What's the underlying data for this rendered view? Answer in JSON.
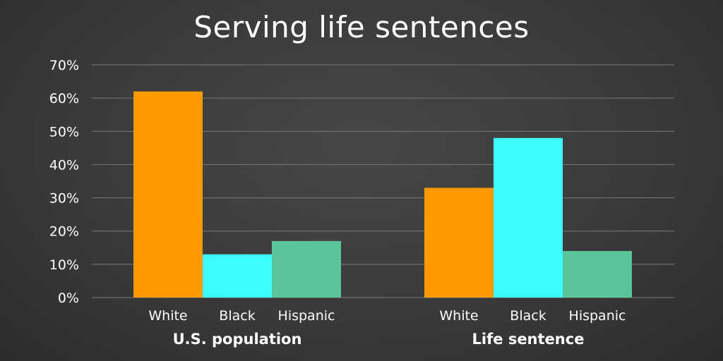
{
  "chart_data": {
    "type": "bar",
    "title": "Serving life sentences",
    "xlabel": "",
    "ylabel": "",
    "ylim": [
      0,
      70
    ],
    "y_ticks": [
      "0%",
      "10%",
      "20%",
      "30%",
      "40%",
      "50%",
      "60%",
      "70%"
    ],
    "y_tick_values": [
      0,
      10,
      20,
      30,
      40,
      50,
      60,
      70
    ],
    "grid": true,
    "groups": [
      {
        "name": "U.S. population",
        "bars": [
          {
            "category": "White",
            "value": 62,
            "color": "#ff9900"
          },
          {
            "category": "Black",
            "value": 13,
            "color": "#3ffcfc"
          },
          {
            "category": "Hispanic",
            "value": 17,
            "color": "#5cc49a"
          }
        ]
      },
      {
        "name": "Life sentence",
        "bars": [
          {
            "category": "White",
            "value": 33,
            "color": "#ff9900"
          },
          {
            "category": "Black",
            "value": 48,
            "color": "#3ffcfc"
          },
          {
            "category": "Hispanic",
            "value": 14,
            "color": "#5cc49a"
          }
        ]
      }
    ]
  }
}
